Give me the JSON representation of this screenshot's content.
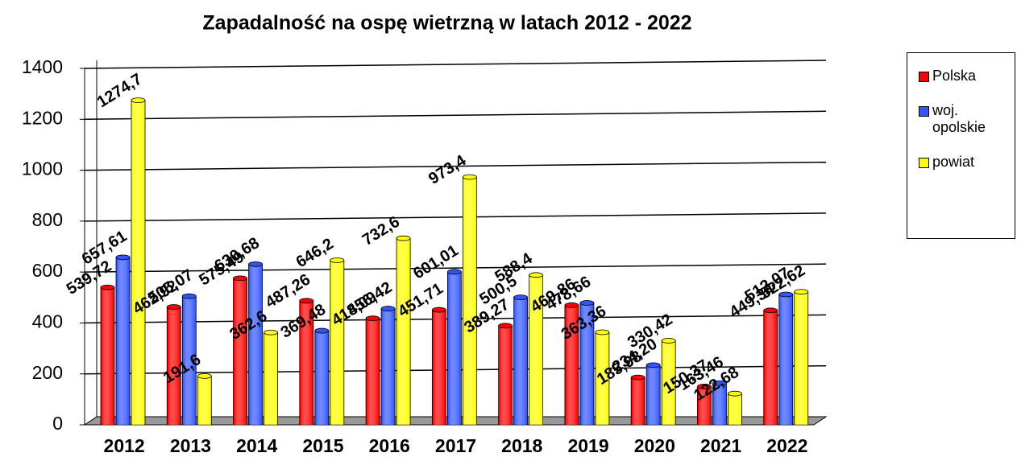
{
  "chart_data": {
    "type": "bar",
    "title": "Zapadalność na ospę wietrzną w latach 2012 - 2022",
    "categories": [
      "2012",
      "2013",
      "2014",
      "2015",
      "2016",
      "2017",
      "2018",
      "2019",
      "2020",
      "2021",
      "2022"
    ],
    "series": [
      {
        "name": "Polska",
        "color": "#ff0000",
        "values": [
          539.72,
          462.92,
          575.49,
          487.26,
          418.09,
          451.71,
          389.27,
          469.86,
          185.98,
          150.37,
          449.34
        ],
        "value_labels": [
          "539,72",
          "462,92",
          "575,49",
          "487,26",
          "418,09",
          "451,71",
          "389,27",
          "469,86",
          "185,98",
          "150,37",
          "449,34"
        ]
      },
      {
        "name": "woj. opolskie",
        "color": "#3355ff",
        "values": [
          657.61,
          505.07,
          630.68,
          369.48,
          456.42,
          601.01,
          500.5,
          478.66,
          234.2,
          163.46,
          512.07
        ],
        "value_labels": [
          "657,61",
          "505,07",
          "630,68",
          "369,48",
          "456,42",
          "601,01",
          "500,5",
          "478,66",
          "234,20",
          "163,46",
          "512,07"
        ]
      },
      {
        "name": "powiat",
        "color": "#ffff00",
        "values": [
          1274.7,
          191.6,
          362.6,
          646.2,
          732.6,
          973.4,
          588.4,
          363.36,
          330.42,
          122.68,
          522.62
        ],
        "value_labels": [
          "1274,7",
          "191,6",
          "362,6",
          "646,2",
          "732,6",
          "973,4",
          "588,4",
          "363,36",
          "330,42",
          "122,68",
          "522,62"
        ]
      }
    ],
    "ylim": [
      0,
      1400
    ],
    "yticks": [
      0,
      200,
      400,
      600,
      800,
      1000,
      1200,
      1400
    ],
    "grid": true,
    "legend": "right"
  }
}
